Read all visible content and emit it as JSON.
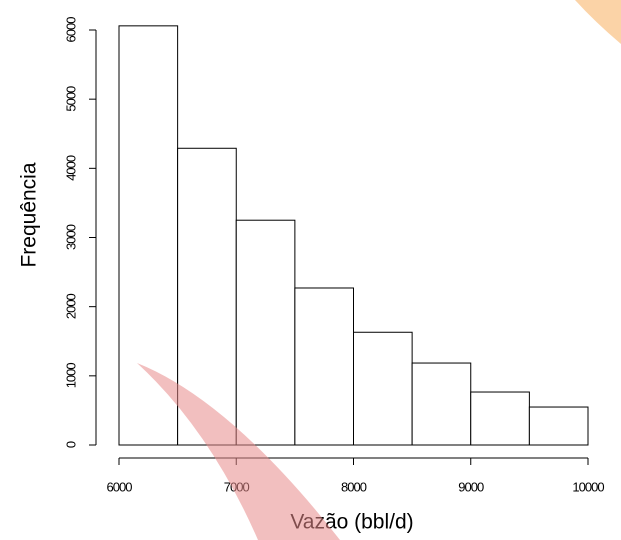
{
  "chart_data": {
    "type": "histogram",
    "x_label": "Vazão (bbl/d)",
    "y_label": "Frequência",
    "bins": [
      6000,
      6500,
      7000,
      7500,
      8000,
      8500,
      9000,
      9500,
      10000
    ],
    "values": [
      6060,
      4290,
      3250,
      2270,
      1630,
      1185,
      766,
      549
    ],
    "color": "#ffffff",
    "edge_color": "#000000",
    "xlim": [
      6000,
      10000
    ],
    "xticks": [
      6000,
      7000,
      8000,
      9000,
      10000
    ],
    "ylim": [
      0,
      6000
    ],
    "yticks": [
      0,
      1000,
      2000,
      3000,
      4000,
      5000,
      6000
    ],
    "grid": false
  }
}
